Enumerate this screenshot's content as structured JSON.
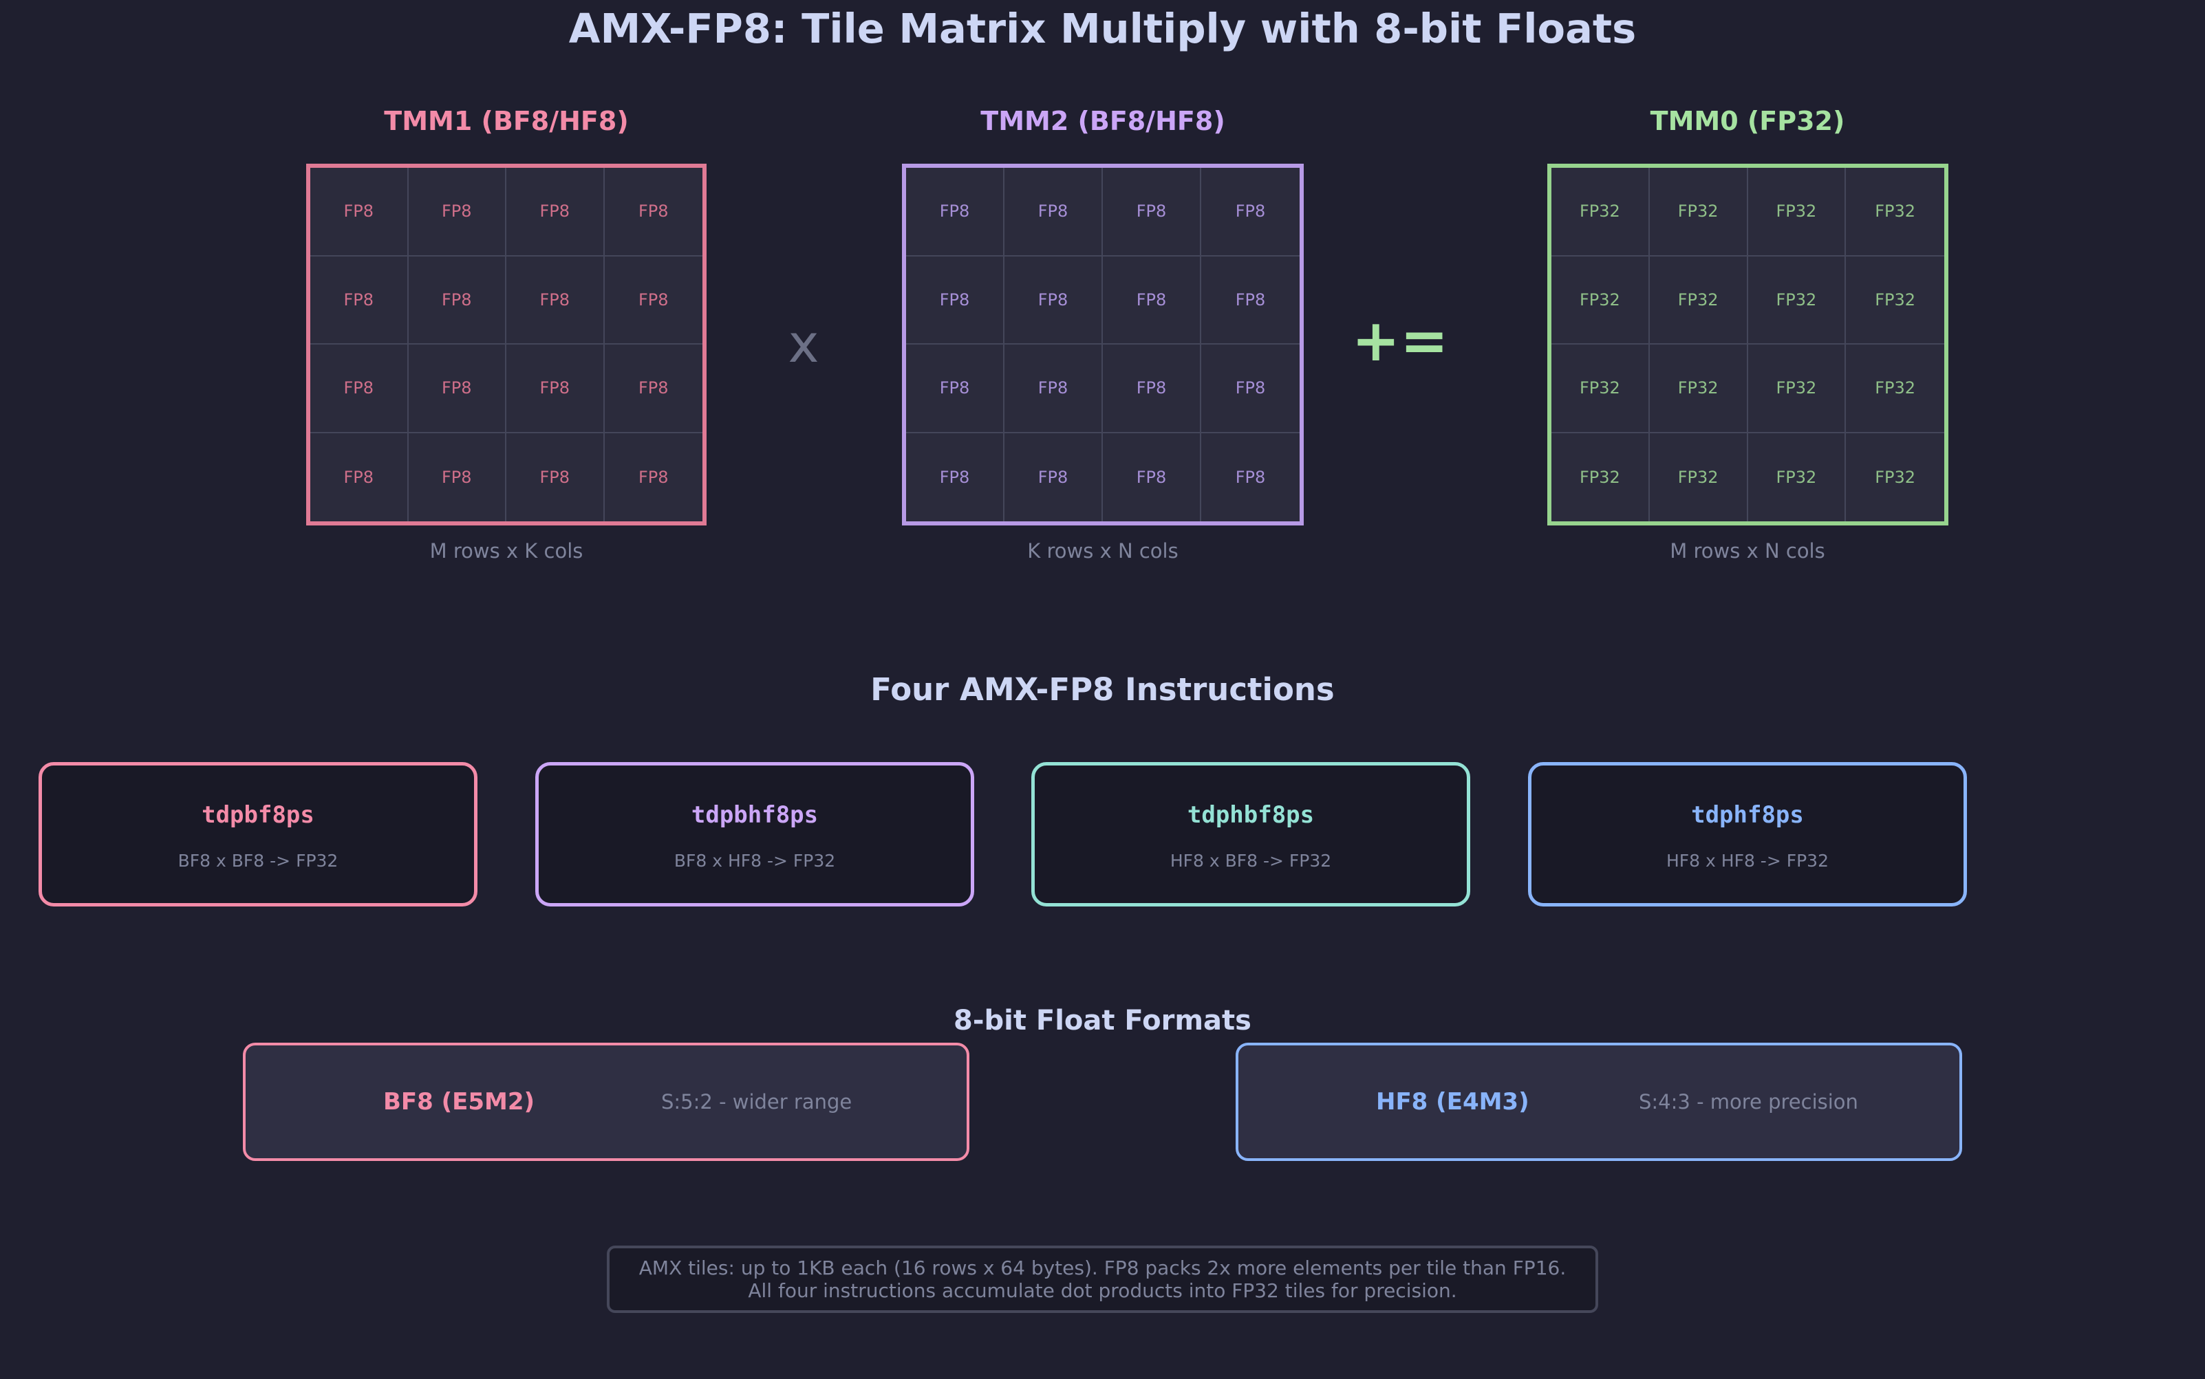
{
  "title": "AMX-FP8: Tile Matrix Multiply with 8-bit Floats",
  "tiles": {
    "tmm1": {
      "title": "TMM1 (BF8/HF8)",
      "caption": "M rows x K cols",
      "cell": "FP8",
      "color": "#f38ba8"
    },
    "tmm2": {
      "title": "TMM2 (BF8/HF8)",
      "caption": "K rows x N cols",
      "cell": "FP8",
      "color": "#cba6f7"
    },
    "tmm0": {
      "title": "TMM0 (FP32)",
      "caption": "M rows x N cols",
      "cell": "FP32",
      "color": "#a6e3a1"
    }
  },
  "operators": {
    "multiply": "x",
    "accumulate": "+="
  },
  "instructions_title": "Four AMX-FP8 Instructions",
  "instructions": [
    {
      "name": "tdpbf8ps",
      "desc": "BF8 x BF8 -> FP32",
      "color": "#f38ba8"
    },
    {
      "name": "tdpbhf8ps",
      "desc": "BF8 x HF8 -> FP32",
      "color": "#cba6f7"
    },
    {
      "name": "tdphbf8ps",
      "desc": "HF8 x BF8 -> FP32",
      "color": "#94e2d5"
    },
    {
      "name": "tdphf8ps",
      "desc": "HF8 x HF8 -> FP32",
      "color": "#89b4fa"
    }
  ],
  "formats_title": "8-bit Float Formats",
  "formats": [
    {
      "name": "BF8 (E5M2)",
      "desc": "S:5:2 - wider range",
      "color": "#f38ba8"
    },
    {
      "name": "HF8 (E4M3)",
      "desc": "S:4:3 - more precision",
      "color": "#89b4fa"
    }
  ],
  "note": {
    "line1": "AMX tiles: up to 1KB each (16 rows x 64 bytes). FP8 packs 2x more elements per tile than FP16.",
    "line2": "All four instructions accumulate dot products into FP32 tiles for precision."
  }
}
